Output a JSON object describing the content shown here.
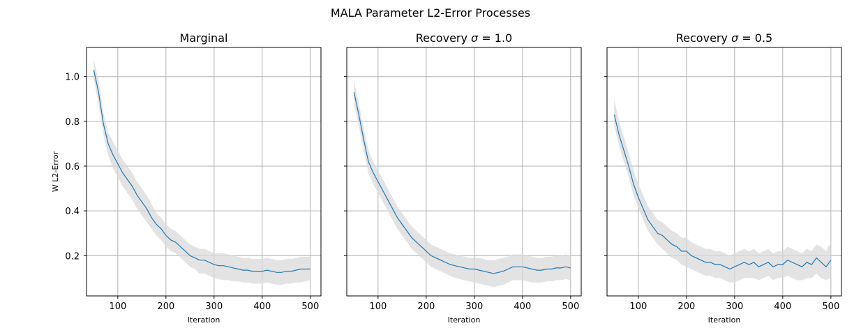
{
  "figure_title": "MALA Parameter L2-Error Processes",
  "shared_ylabel": "W L2-Error",
  "chart_data": [
    {
      "type": "line",
      "title": "Marginal",
      "xlabel": "Iteration",
      "ylabel": "W L2-Error",
      "xlim": [
        35,
        522
      ],
      "ylim": [
        0.02,
        1.13
      ],
      "xticks": [
        "100",
        "200",
        "300",
        "400",
        "500"
      ],
      "yticks": [
        "0.2",
        "0.4",
        "0.6",
        "0.8",
        "1.0"
      ],
      "grid": true,
      "series": [
        {
          "x": [
            50,
            60,
            70,
            80,
            90,
            100,
            110,
            120,
            130,
            140,
            150,
            160,
            170,
            180,
            190,
            200,
            210,
            220,
            230,
            240,
            250,
            260,
            270,
            280,
            290,
            300,
            310,
            320,
            330,
            340,
            350,
            360,
            370,
            380,
            390,
            400,
            410,
            420,
            430,
            440,
            450,
            460,
            470,
            480,
            490,
            500
          ],
          "y": [
            1.03,
            0.93,
            0.79,
            0.7,
            0.65,
            0.61,
            0.57,
            0.54,
            0.51,
            0.47,
            0.44,
            0.41,
            0.37,
            0.34,
            0.32,
            0.29,
            0.27,
            0.26,
            0.24,
            0.22,
            0.2,
            0.19,
            0.18,
            0.18,
            0.17,
            0.16,
            0.155,
            0.155,
            0.15,
            0.145,
            0.14,
            0.135,
            0.135,
            0.13,
            0.13,
            0.13,
            0.135,
            0.13,
            0.125,
            0.125,
            0.13,
            0.13,
            0.135,
            0.14,
            0.14,
            0.14
          ],
          "lower": [
            0.99,
            0.88,
            0.74,
            0.65,
            0.59,
            0.55,
            0.51,
            0.48,
            0.45,
            0.41,
            0.38,
            0.35,
            0.32,
            0.29,
            0.27,
            0.24,
            0.22,
            0.21,
            0.19,
            0.17,
            0.15,
            0.14,
            0.12,
            0.12,
            0.11,
            0.1,
            0.095,
            0.09,
            0.09,
            0.085,
            0.085,
            0.08,
            0.08,
            0.075,
            0.075,
            0.075,
            0.08,
            0.075,
            0.07,
            0.07,
            0.075,
            0.075,
            0.08,
            0.08,
            0.085,
            0.09
          ],
          "upper": [
            1.08,
            0.98,
            0.84,
            0.75,
            0.71,
            0.67,
            0.63,
            0.6,
            0.57,
            0.53,
            0.5,
            0.47,
            0.43,
            0.39,
            0.37,
            0.34,
            0.32,
            0.31,
            0.29,
            0.27,
            0.25,
            0.24,
            0.23,
            0.23,
            0.22,
            0.21,
            0.21,
            0.21,
            0.205,
            0.2,
            0.195,
            0.19,
            0.19,
            0.185,
            0.185,
            0.185,
            0.19,
            0.185,
            0.18,
            0.18,
            0.185,
            0.185,
            0.19,
            0.195,
            0.195,
            0.195
          ]
        }
      ]
    },
    {
      "type": "line",
      "title": "Recovery σ = 1.0",
      "xlabel": "Iteration",
      "xlim": [
        35,
        522
      ],
      "ylim": [
        0.02,
        1.13
      ],
      "xticks": [
        "100",
        "200",
        "300",
        "400",
        "500"
      ],
      "grid": true,
      "series": [
        {
          "x": [
            50,
            60,
            70,
            80,
            90,
            100,
            110,
            120,
            130,
            140,
            150,
            160,
            170,
            180,
            190,
            200,
            210,
            220,
            230,
            240,
            250,
            260,
            270,
            280,
            290,
            300,
            310,
            320,
            330,
            340,
            350,
            360,
            370,
            380,
            390,
            400,
            410,
            420,
            430,
            440,
            450,
            460,
            470,
            480,
            490,
            500
          ],
          "y": [
            0.93,
            0.83,
            0.72,
            0.62,
            0.57,
            0.53,
            0.49,
            0.45,
            0.41,
            0.37,
            0.34,
            0.31,
            0.28,
            0.26,
            0.24,
            0.22,
            0.2,
            0.19,
            0.18,
            0.17,
            0.16,
            0.155,
            0.15,
            0.145,
            0.14,
            0.14,
            0.135,
            0.13,
            0.125,
            0.12,
            0.125,
            0.13,
            0.14,
            0.15,
            0.15,
            0.15,
            0.145,
            0.14,
            0.135,
            0.135,
            0.14,
            0.14,
            0.145,
            0.145,
            0.15,
            0.145
          ],
          "lower": [
            0.88,
            0.78,
            0.67,
            0.57,
            0.52,
            0.48,
            0.44,
            0.4,
            0.36,
            0.32,
            0.29,
            0.26,
            0.23,
            0.21,
            0.19,
            0.17,
            0.15,
            0.14,
            0.13,
            0.12,
            0.11,
            0.1,
            0.095,
            0.09,
            0.085,
            0.08,
            0.075,
            0.07,
            0.065,
            0.06,
            0.065,
            0.07,
            0.08,
            0.09,
            0.09,
            0.09,
            0.085,
            0.08,
            0.08,
            0.08,
            0.085,
            0.085,
            0.09,
            0.09,
            0.095,
            0.09
          ],
          "upper": [
            0.98,
            0.88,
            0.77,
            0.67,
            0.62,
            0.58,
            0.54,
            0.5,
            0.46,
            0.42,
            0.39,
            0.36,
            0.33,
            0.31,
            0.29,
            0.27,
            0.25,
            0.24,
            0.23,
            0.22,
            0.21,
            0.205,
            0.2,
            0.195,
            0.19,
            0.19,
            0.19,
            0.185,
            0.18,
            0.18,
            0.185,
            0.19,
            0.195,
            0.205,
            0.205,
            0.205,
            0.2,
            0.195,
            0.19,
            0.19,
            0.195,
            0.195,
            0.2,
            0.2,
            0.205,
            0.2
          ]
        }
      ]
    },
    {
      "type": "line",
      "title": "Recovery σ = 0.5",
      "xlabel": "Iteration",
      "xlim": [
        35,
        522
      ],
      "ylim": [
        0.02,
        1.13
      ],
      "xticks": [
        "100",
        "200",
        "300",
        "400",
        "500"
      ],
      "grid": true,
      "series": [
        {
          "x": [
            50,
            60,
            70,
            80,
            90,
            100,
            110,
            120,
            130,
            140,
            150,
            160,
            170,
            180,
            190,
            200,
            210,
            220,
            230,
            240,
            250,
            260,
            270,
            280,
            290,
            300,
            310,
            320,
            330,
            340,
            350,
            360,
            370,
            380,
            390,
            400,
            410,
            420,
            430,
            440,
            450,
            460,
            470,
            480,
            490,
            500
          ],
          "y": [
            0.83,
            0.74,
            0.67,
            0.6,
            0.52,
            0.46,
            0.41,
            0.36,
            0.33,
            0.3,
            0.29,
            0.27,
            0.25,
            0.24,
            0.22,
            0.22,
            0.2,
            0.19,
            0.18,
            0.17,
            0.17,
            0.16,
            0.16,
            0.15,
            0.14,
            0.15,
            0.16,
            0.17,
            0.16,
            0.17,
            0.15,
            0.16,
            0.17,
            0.15,
            0.16,
            0.16,
            0.18,
            0.17,
            0.16,
            0.15,
            0.17,
            0.16,
            0.19,
            0.17,
            0.15,
            0.18
          ],
          "lower": [
            0.78,
            0.69,
            0.62,
            0.55,
            0.47,
            0.41,
            0.36,
            0.31,
            0.28,
            0.25,
            0.23,
            0.21,
            0.19,
            0.18,
            0.16,
            0.15,
            0.14,
            0.13,
            0.12,
            0.11,
            0.11,
            0.1,
            0.1,
            0.09,
            0.08,
            0.08,
            0.09,
            0.1,
            0.1,
            0.1,
            0.09,
            0.1,
            0.11,
            0.09,
            0.1,
            0.1,
            0.11,
            0.1,
            0.09,
            0.09,
            0.1,
            0.1,
            0.12,
            0.1,
            0.09,
            0.1
          ],
          "upper": [
            0.9,
            0.8,
            0.73,
            0.66,
            0.58,
            0.52,
            0.47,
            0.42,
            0.39,
            0.36,
            0.35,
            0.33,
            0.31,
            0.3,
            0.28,
            0.28,
            0.26,
            0.25,
            0.24,
            0.23,
            0.23,
            0.22,
            0.22,
            0.21,
            0.2,
            0.21,
            0.22,
            0.23,
            0.22,
            0.23,
            0.21,
            0.22,
            0.23,
            0.21,
            0.22,
            0.22,
            0.24,
            0.23,
            0.22,
            0.21,
            0.23,
            0.22,
            0.25,
            0.24,
            0.22,
            0.26
          ]
        }
      ]
    }
  ]
}
